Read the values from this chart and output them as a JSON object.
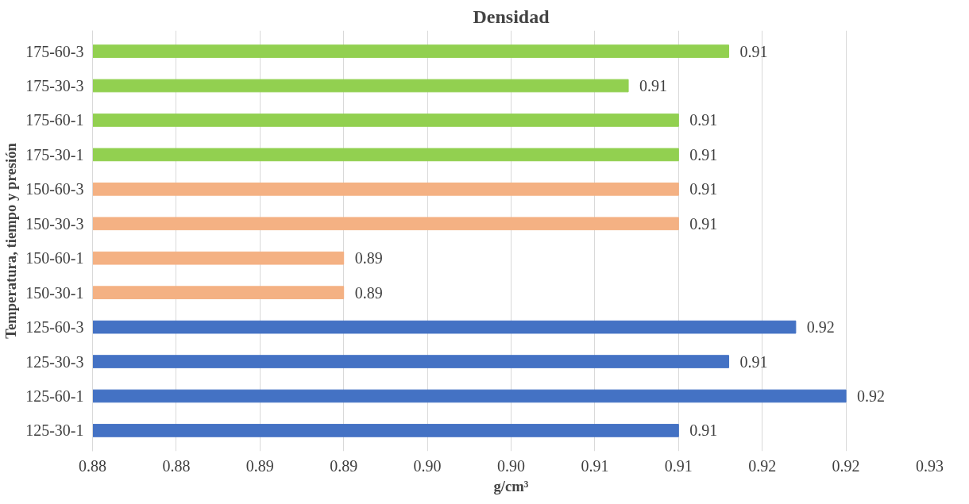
{
  "chart_data": {
    "type": "bar",
    "orientation": "horizontal",
    "title": "Densidad",
    "xlabel": "g/cm³",
    "ylabel": "Temperatura, tiempo y presión",
    "categories": [
      "175-60-3",
      "175-30-3",
      "175-60-1",
      "175-30-1",
      "150-60-3",
      "150-30-3",
      "150-60-1",
      "150-30-1",
      "125-60-3",
      "125-30-3",
      "125-60-1",
      "125-30-1"
    ],
    "values": [
      0.914,
      0.908,
      0.911,
      0.911,
      0.911,
      0.911,
      0.891,
      0.891,
      0.918,
      0.914,
      0.921,
      0.911
    ],
    "colors": [
      "#92d050",
      "#92d050",
      "#92d050",
      "#92d050",
      "#f4b183",
      "#f4b183",
      "#f4b183",
      "#f4b183",
      "#4472c4",
      "#4472c4",
      "#4472c4",
      "#4472c4"
    ],
    "value_labels": [
      "0.91",
      "0.91",
      "0.91",
      "0.91",
      "0.91",
      "0.91",
      "0.89",
      "0.89",
      "0.92",
      "0.91",
      "0.92",
      "0.91"
    ],
    "xlim": [
      0.876,
      0.926
    ],
    "xticks": [
      {
        "value": 0.876,
        "label": "0.88"
      },
      {
        "value": 0.881,
        "label": "0.88"
      },
      {
        "value": 0.886,
        "label": "0.89"
      },
      {
        "value": 0.891,
        "label": "0.89"
      },
      {
        "value": 0.896,
        "label": "0.90"
      },
      {
        "value": 0.901,
        "label": "0.90"
      },
      {
        "value": 0.906,
        "label": "0.91"
      },
      {
        "value": 0.911,
        "label": "0.91"
      },
      {
        "value": 0.916,
        "label": "0.92"
      },
      {
        "value": 0.921,
        "label": "0.92"
      },
      {
        "value": 0.926,
        "label": "0.93"
      }
    ],
    "grid": "x"
  }
}
